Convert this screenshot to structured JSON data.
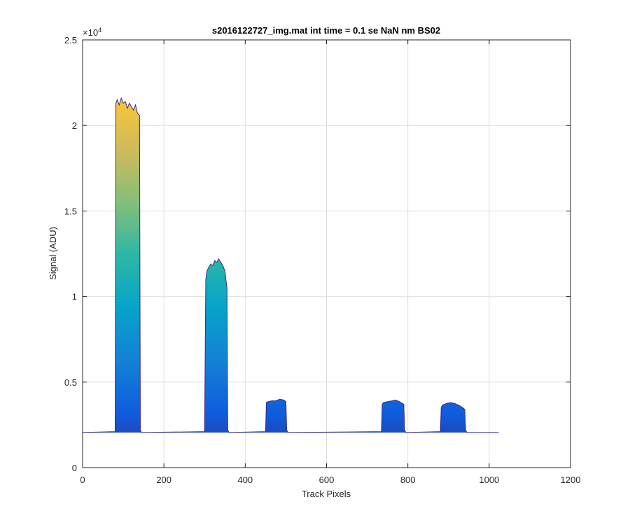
{
  "chart_data": {
    "type": "area",
    "title": "s2016122727_img.mat int time = 0.1 se  NaN nm BS02",
    "xlabel": "Track Pixels",
    "ylabel": "Signal (ADU)",
    "xlim": [
      0,
      1200
    ],
    "ylim": [
      0,
      25000
    ],
    "x_ticks": [
      0,
      200,
      400,
      600,
      800,
      1000,
      1200
    ],
    "x_tick_labels": [
      "0",
      "200",
      "400",
      "600",
      "800",
      "1000",
      "1200"
    ],
    "y_ticks": [
      0,
      5000,
      10000,
      15000,
      20000,
      25000
    ],
    "y_tick_labels": [
      "0",
      "0.5",
      "1",
      "1.5",
      "2",
      "2.5"
    ],
    "y_exponent_label": "×10",
    "y_exponent_power": "4",
    "grid": true,
    "colormap": "parula",
    "colormap_stops": [
      "#352a87",
      "#0f5cdd",
      "#1481d6",
      "#06a4ca",
      "#2eb7a4",
      "#87bf77",
      "#d1bb59",
      "#fec832",
      "#f9fb0e"
    ],
    "baseline": 2050,
    "x_end": 1023,
    "series": [
      {
        "x": [
          0,
          80,
          82,
          85,
          90,
          95,
          100,
          105,
          110,
          115,
          120,
          125,
          130,
          135,
          140,
          142,
          145,
          300,
          303,
          306,
          310,
          315,
          320,
          325,
          330,
          335,
          340,
          345,
          350,
          355,
          357,
          360,
          450,
          452,
          455,
          465,
          475,
          485,
          495,
          500,
          502,
          505,
          735,
          737,
          740,
          750,
          760,
          770,
          780,
          790,
          792,
          795,
          880,
          882,
          885,
          895,
          905,
          915,
          925,
          935,
          940,
          942,
          945,
          1023
        ],
        "y": [
          2050,
          2100,
          21300,
          21500,
          21200,
          21600,
          21300,
          21400,
          21000,
          21300,
          21100,
          20900,
          21200,
          20700,
          20600,
          2200,
          2050,
          2100,
          11000,
          11500,
          11700,
          11900,
          11800,
          12100,
          12000,
          12200,
          12000,
          11800,
          11500,
          10500,
          2200,
          2050,
          2100,
          3800,
          3850,
          3900,
          3900,
          4000,
          3950,
          3850,
          2200,
          2050,
          2100,
          3700,
          3800,
          3850,
          3900,
          3950,
          3850,
          3700,
          2200,
          2050,
          2100,
          3500,
          3650,
          3750,
          3800,
          3750,
          3650,
          3500,
          3400,
          2200,
          2050,
          2050
        ]
      }
    ]
  }
}
